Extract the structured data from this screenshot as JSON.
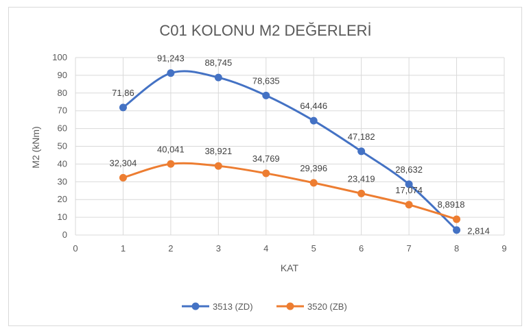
{
  "chart_data": {
    "type": "line",
    "title": "C01 KOLONU M2 DEĞERLERİ",
    "xlabel": "KAT",
    "ylabel": "M2 (kNm)",
    "xlim": [
      0,
      9
    ],
    "ylim": [
      0,
      100
    ],
    "x_ticks": [
      "0",
      "1",
      "2",
      "3",
      "4",
      "5",
      "6",
      "7",
      "8",
      "9"
    ],
    "y_ticks": [
      "0",
      "10",
      "20",
      "30",
      "40",
      "50",
      "60",
      "70",
      "80",
      "90",
      "100"
    ],
    "grid": true,
    "smooth": true,
    "legend_position": "bottom",
    "series": [
      {
        "name": "3513 (ZD)",
        "color": "#4472C4",
        "x": [
          1,
          2,
          3,
          4,
          5,
          6,
          7,
          8
        ],
        "values": [
          71.86,
          91.243,
          88.745,
          78.635,
          64.446,
          47.182,
          28.632,
          2.814
        ],
        "labels": [
          "71,86",
          "91,243",
          "88,745",
          "78,635",
          "64,446",
          "47,182",
          "28,632",
          "2,814"
        ]
      },
      {
        "name": "3520 (ZB)",
        "color": "#ED7D31",
        "x": [
          1,
          2,
          3,
          4,
          5,
          6,
          7,
          8
        ],
        "values": [
          32.304,
          40.041,
          38.921,
          34.769,
          29.396,
          23.419,
          17.074,
          8.8918
        ],
        "labels": [
          "32,304",
          "40,041",
          "38,921",
          "34,769",
          "29,396",
          "23,419",
          "17,074",
          "8,8918"
        ]
      }
    ]
  }
}
